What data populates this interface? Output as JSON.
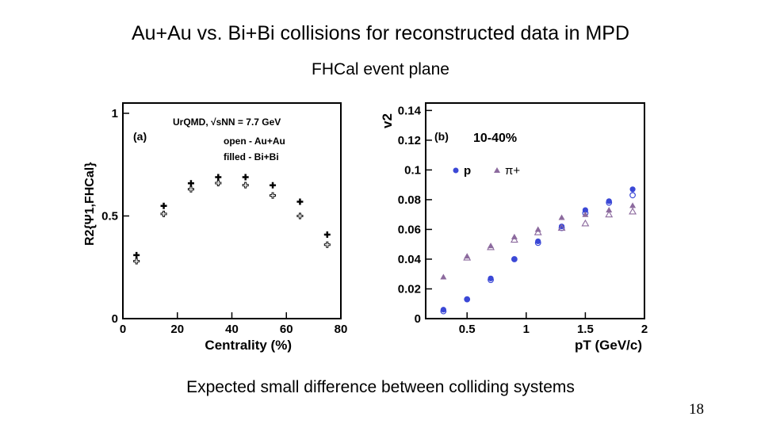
{
  "slide": {
    "title": "Au+Au vs. Bi+Bi collisions for reconstructed data in MPD",
    "subtitle": "FHCal event plane",
    "caption": "Expected small difference between colliding systems",
    "page_number": "18"
  },
  "chart_data": [
    {
      "type": "scatter",
      "panel_label": "(a)",
      "xlabel": "Centrality (%)",
      "ylabel": "R2{Ψ1,FHCal}",
      "xlim": [
        0,
        80
      ],
      "ylim": [
        0,
        1.05
      ],
      "xticks": [
        "0",
        "20",
        "40",
        "60",
        "80"
      ],
      "yticks": [
        "0",
        "0.5",
        "1"
      ],
      "annotations": [
        "UrQMD, √sNN = 7.7 GeV",
        "open - Au+Au",
        "filled - Bi+Bi"
      ],
      "series": [
        {
          "name": "Au+Au",
          "marker": "open-cross",
          "color": "#000000",
          "x": [
            5,
            15,
            25,
            35,
            45,
            55,
            65,
            75
          ],
          "y": [
            0.28,
            0.51,
            0.63,
            0.66,
            0.65,
            0.6,
            0.5,
            0.36
          ]
        },
        {
          "name": "Bi+Bi",
          "marker": "filled-cross",
          "color": "#000000",
          "x": [
            5,
            15,
            25,
            35,
            45,
            55,
            65,
            75
          ],
          "y": [
            0.29,
            0.53,
            0.64,
            0.67,
            0.67,
            0.63,
            0.55,
            0.39
          ]
        }
      ]
    },
    {
      "type": "scatter",
      "panel_label": "(b)",
      "panel_title": "10-40%",
      "xlabel": "pT (GeV/c)",
      "ylabel": "v2",
      "xlim": [
        0.15,
        2.0
      ],
      "ylim": [
        0,
        0.145
      ],
      "xticks": [
        "0.5",
        "1",
        "1.5",
        "2"
      ],
      "yticks": [
        "0",
        "0.02",
        "0.04",
        "0.06",
        "0.08",
        "0.1",
        "0.12",
        "0.14"
      ],
      "legend": [
        "p",
        "π+"
      ],
      "series": [
        {
          "name": "p",
          "marker": "filled-circle",
          "color": "#3b48d6",
          "x": [
            0.3,
            0.5,
            0.7,
            0.9,
            1.1,
            1.3,
            1.5,
            1.7,
            1.9
          ],
          "y": [
            0.006,
            0.013,
            0.027,
            0.04,
            0.052,
            0.062,
            0.073,
            0.079,
            0.087
          ]
        },
        {
          "name": "p (Au+Au)",
          "marker": "open-circle",
          "color": "#3b48d6",
          "x": [
            0.3,
            0.5,
            0.7,
            0.9,
            1.1,
            1.3,
            1.5,
            1.7,
            1.9
          ],
          "y": [
            0.005,
            0.013,
            0.026,
            0.04,
            0.051,
            0.061,
            0.071,
            0.078,
            0.083
          ]
        },
        {
          "name": "π+",
          "marker": "filled-triangle",
          "color": "#8c6a9e",
          "x": [
            0.3,
            0.5,
            0.7,
            0.9,
            1.1,
            1.3,
            1.5,
            1.7,
            1.9
          ],
          "y": [
            0.028,
            0.042,
            0.049,
            0.055,
            0.06,
            0.068,
            0.07,
            0.073,
            0.076
          ]
        },
        {
          "name": "π+ (Au+Au)",
          "marker": "open-triangle",
          "color": "#8c6a9e",
          "x": [
            0.5,
            0.7,
            0.9,
            1.1,
            1.3,
            1.5,
            1.7,
            1.9
          ],
          "y": [
            0.041,
            0.048,
            0.053,
            0.058,
            0.061,
            0.064,
            0.07,
            0.072
          ]
        }
      ]
    }
  ]
}
